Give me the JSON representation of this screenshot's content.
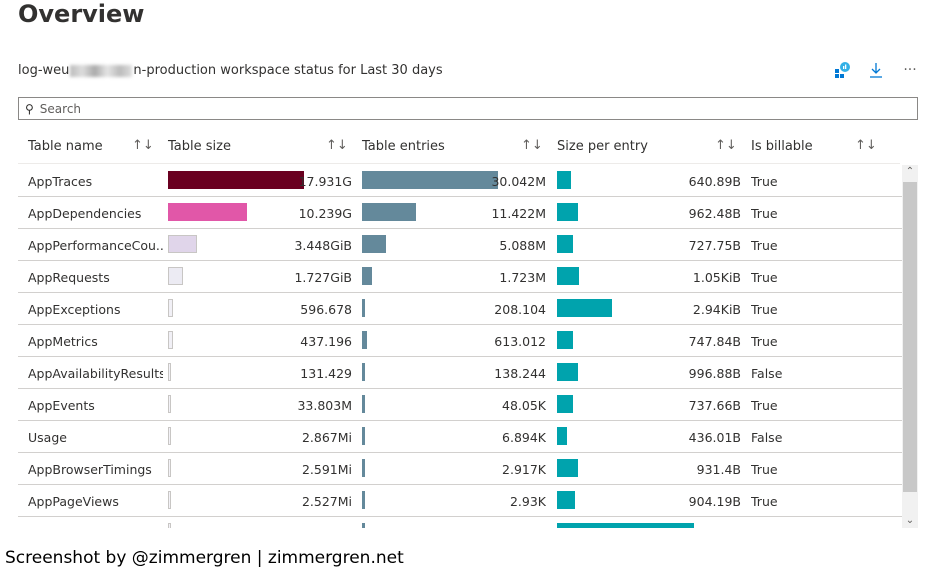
{
  "page_title": "Overview",
  "panel": {
    "title_prefix": "log-weu",
    "title_suffix": "n-production workspace status for Last 30 days"
  },
  "toolbar": {
    "icons": [
      "insights-icon",
      "download-icon",
      "more-icon"
    ],
    "more": "···",
    "download": "↓"
  },
  "search": {
    "placeholder": "Search",
    "icon": "search-icon"
  },
  "columns": [
    {
      "label": "Table name"
    },
    {
      "label": "Table size"
    },
    {
      "label": "Table entries"
    },
    {
      "label": "Size per entry"
    },
    {
      "label": "Is billable"
    }
  ],
  "sort_glyph": "↑↓",
  "colors": {
    "entries_bar": "#64899b",
    "size_per_entry_bar": "#00a3ad"
  },
  "rows": [
    {
      "name": "AppTraces",
      "size": "17.931G",
      "size_fill": 1.0,
      "size_color": "#6a0020",
      "entries": "30.042M",
      "entries_fill": 1.0,
      "spe": "640.89B",
      "spe_fill": 0.1,
      "billable": "True"
    },
    {
      "name": "AppDependencies",
      "size": "10.239G",
      "size_fill": 0.58,
      "size_color": "#e157a8",
      "entries": "11.422M",
      "entries_fill": 0.4,
      "spe": "962.48B",
      "spe_fill": 0.15,
      "billable": "True"
    },
    {
      "name": "AppPerformanceCou...",
      "size": "3.448GiB",
      "size_fill": 0.21,
      "size_color": "#e0d5ea",
      "entries": "5.088M",
      "entries_fill": 0.18,
      "spe": "727.75B",
      "spe_fill": 0.12,
      "billable": "True"
    },
    {
      "name": "AppRequests",
      "size": "1.727GiB",
      "size_fill": 0.11,
      "size_color": "#ecebf3",
      "entries": "1.723M",
      "entries_fill": 0.07,
      "spe": "1.05KiB",
      "spe_fill": 0.16,
      "billable": "True"
    },
    {
      "name": "AppExceptions",
      "size": "596.678",
      "size_fill": 0.04,
      "size_color": "#f1f0f6",
      "entries": "208.104",
      "entries_fill": 0.02,
      "spe": "2.94KiB",
      "spe_fill": 0.4,
      "billable": "True"
    },
    {
      "name": "AppMetrics",
      "size": "437.196",
      "size_fill": 0.035,
      "size_color": "#f1f0f6",
      "entries": "613.012",
      "entries_fill": 0.04,
      "spe": "747.84B",
      "spe_fill": 0.12,
      "billable": "True"
    },
    {
      "name": "AppAvailabilityResults",
      "size": "131.429",
      "size_fill": 0.01,
      "size_color": "#f3f2f7",
      "entries": "138.244",
      "entries_fill": 0.02,
      "spe": "996.88B",
      "spe_fill": 0.15,
      "billable": "False"
    },
    {
      "name": "AppEvents",
      "size": "33.803M",
      "size_fill": 0.01,
      "size_color": "#f3f2f7",
      "entries": "48.05K",
      "entries_fill": 0.02,
      "spe": "737.66B",
      "spe_fill": 0.12,
      "billable": "True"
    },
    {
      "name": "Usage",
      "size": "2.867Mi",
      "size_fill": 0.01,
      "size_color": "#f3f2f7",
      "entries": "6.894K",
      "entries_fill": 0.02,
      "spe": "436.01B",
      "spe_fill": 0.07,
      "billable": "False"
    },
    {
      "name": "AppBrowserTimings",
      "size": "2.591Mi",
      "size_fill": 0.01,
      "size_color": "#f3f2f7",
      "entries": "2.917K",
      "entries_fill": 0.02,
      "spe": "931.4B",
      "spe_fill": 0.15,
      "billable": "True"
    },
    {
      "name": "AppPageViews",
      "size": "2.527Mi",
      "size_fill": 0.01,
      "size_color": "#f3f2f7",
      "entries": "2.93K",
      "entries_fill": 0.02,
      "spe": "904.19B",
      "spe_fill": 0.13,
      "billable": "True"
    },
    {
      "name": "",
      "size": "",
      "size_fill": 0.01,
      "size_color": "#f3f2f7",
      "entries": "",
      "entries_fill": 0.02,
      "spe": "",
      "spe_fill": 1.0,
      "billable": ""
    }
  ],
  "scrollbar": {
    "up": "⌃",
    "down": "⌄"
  },
  "caption": "Screenshot by @zimmergren | zimmergren.net"
}
